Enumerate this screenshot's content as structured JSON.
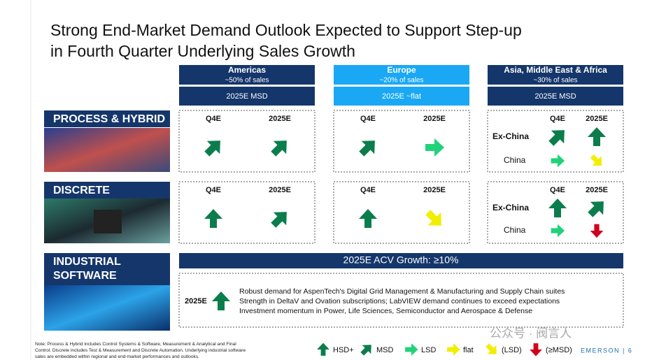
{
  "title_lines": [
    "Strong End-Market Demand Outlook Expected to Support Step-up",
    "in Fourth Quarter Underlying Sales Growth"
  ],
  "regions": [
    {
      "name": "Americas",
      "share": "~50% of sales",
      "outlook": "2025E MSD"
    },
    {
      "name": "Europe",
      "share": "~20% of sales",
      "outlook": "2025E ~flat"
    },
    {
      "name": "Asia, Middle East & Africa",
      "share": "~30% of sales",
      "outlook": "2025E MSD"
    }
  ],
  "periods": [
    "Q4E",
    "2025E"
  ],
  "segments": [
    {
      "name_lines": [
        "PROCESS & HYBRID"
      ],
      "cells": [
        {
          "rows": [
            {
              "arrows": [
                "MSD",
                "MSD"
              ]
            }
          ]
        },
        {
          "rows": [
            {
              "arrows": [
                "MSD",
                "LSD"
              ]
            }
          ]
        },
        {
          "rows": [
            {
              "label": "Ex-China",
              "arrows": [
                "MSD",
                "HSD+"
              ]
            },
            {
              "label": "China",
              "arrows": [
                "LSD",
                "(LSD)"
              ]
            }
          ]
        }
      ]
    },
    {
      "name_lines": [
        "DISCRETE"
      ],
      "cells": [
        {
          "rows": [
            {
              "arrows": [
                "HSD+",
                "MSD"
              ]
            }
          ]
        },
        {
          "rows": [
            {
              "arrows": [
                "HSD+",
                "(LSD)"
              ]
            }
          ]
        },
        {
          "rows": [
            {
              "label": "Ex-China",
              "arrows": [
                "HSD+",
                "MSD"
              ]
            },
            {
              "label": "China",
              "arrows": [
                "LSD",
                "(≥MSD)"
              ]
            }
          ]
        }
      ]
    },
    {
      "name_lines": [
        "INDUSTRIAL",
        "SOFTWARE"
      ]
    }
  ],
  "software": {
    "banner": "2025E ACV Growth: ≥10%",
    "period": "2025E",
    "arrow": "HSD+",
    "bullets": [
      "Robust demand for AspenTech's Digital Grid Management & Manufacturing and Supply Chain suites",
      "Strength in DeltaV and Ovation subscriptions; LabVIEW demand continues to exceed expectations",
      "Investment momentum in Power, Life Sciences, Semiconductor and Aerospace & Defense"
    ]
  },
  "legend": [
    {
      "label": "HSD+",
      "direction": "up",
      "color": "#0b7d4c"
    },
    {
      "label": "MSD",
      "direction": "up-right",
      "color": "#0b7d4c"
    },
    {
      "label": "LSD",
      "direction": "right",
      "color": "#22d27a"
    },
    {
      "label": "flat",
      "direction": "right",
      "color": "#f2ee00"
    },
    {
      "label": "(LSD)",
      "direction": "down-right",
      "color": "#f2ee00"
    },
    {
      "label": "(≥MSD)",
      "direction": "down",
      "color": "#d0021b"
    }
  ],
  "footnote_lines": [
    "Note: Process & Hybrid includes Control Systems & Software, Measurement & Analytical and Final",
    "Control. Discrete includes Test & Measurement and Discrete Automation. Underlying industrial software",
    "sales are embedded within regional and end-market performances and outlooks."
  ],
  "brand": "EMERSON | 6",
  "watermark": "公众号 · 阀言人"
}
